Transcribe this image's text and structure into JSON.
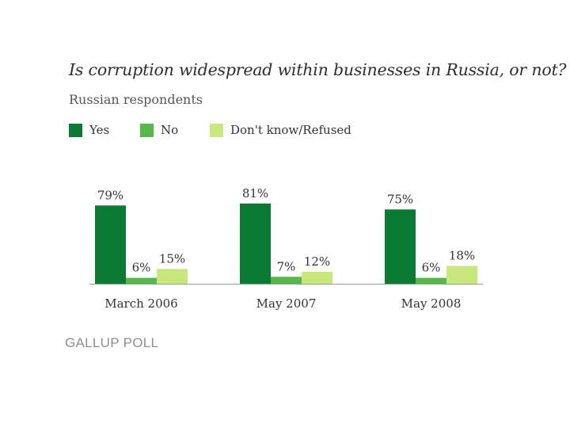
{
  "title": "Is corruption widespread within businesses in Russia, or not?",
  "subtitle": "Russian respondents",
  "legend": [
    {
      "label": "Yes",
      "color": "#0b7a32"
    },
    {
      "label": "No",
      "color": "#55b949"
    },
    {
      "label": "Don't know/Refused",
      "color": "#c6e87d"
    }
  ],
  "brand": "GALLUP POLL",
  "chart_data": {
    "type": "bar",
    "categories": [
      "March 2006",
      "May 2007",
      "May 2008"
    ],
    "series": [
      {
        "name": "Yes",
        "values": [
          79,
          81,
          75
        ],
        "labels": [
          "79%",
          "81%",
          "75%"
        ],
        "color": "#0b7a32"
      },
      {
        "name": "No",
        "values": [
          6,
          7,
          6
        ],
        "labels": [
          "6%",
          "7%",
          "6%"
        ],
        "color": "#55b949"
      },
      {
        "name": "Don't know/Refused",
        "values": [
          15,
          12,
          18
        ],
        "labels": [
          "15%",
          "12%",
          "18%"
        ],
        "color": "#c6e87d"
      }
    ],
    "ylim": [
      0,
      100
    ],
    "grid": false,
    "legend_position": "top-left"
  }
}
